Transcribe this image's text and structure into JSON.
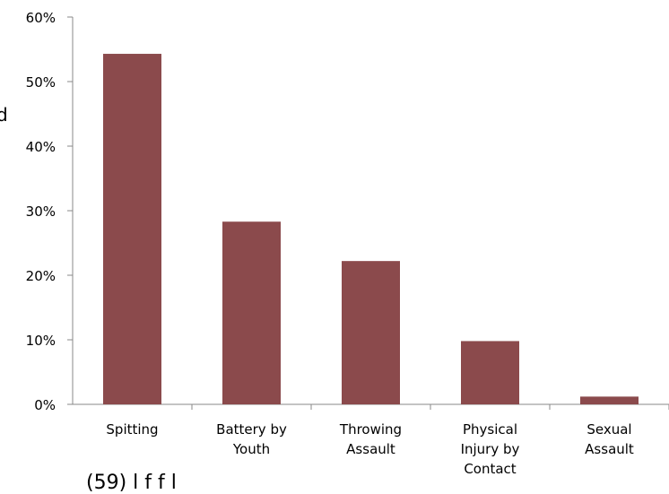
{
  "chart_data": {
    "type": "bar",
    "categories": [
      [
        "Spitting"
      ],
      [
        "Battery by",
        "Youth"
      ],
      [
        "Throwing",
        "Assault"
      ],
      [
        "Physical",
        "Injury by",
        "Contact"
      ],
      [
        "Sexual",
        "Assault"
      ]
    ],
    "values": [
      54.3,
      28.3,
      22.2,
      9.8,
      1.2
    ],
    "yticks": [
      "0%",
      "10%",
      "20%",
      "30%",
      "40%",
      "50%",
      "60%"
    ],
    "ylim": [
      0,
      60
    ],
    "grid": false,
    "legend": "none",
    "bar_color": "#8B4A4C",
    "axis_color": "#888888"
  },
  "fragments": {
    "ylabel_visible": "d",
    "footer_visible": "(59)      l  f    f  l"
  }
}
